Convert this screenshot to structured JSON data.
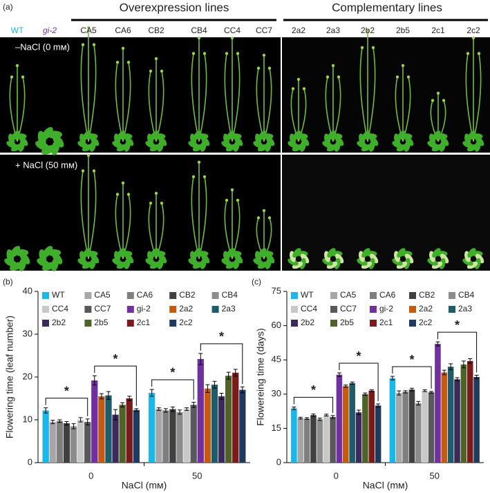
{
  "photo": {
    "panel_label": "(a)",
    "group_labels": [
      "Overexpression lines",
      "Complementary lines"
    ],
    "line_labels": [
      "WT",
      "gi-2",
      "CA5",
      "CA6",
      "CB2",
      "CB4",
      "CC4",
      "CC7",
      "2a2",
      "2a3",
      "2b2",
      "2b5",
      "2c1",
      "2c2"
    ],
    "conditions": [
      "–NaCl (0 mᴍ)",
      "+ NaCl (50 mᴍ)"
    ]
  },
  "chart_data": [
    {
      "type": "bar",
      "panel_label": "(b)",
      "y_label": "Flowering time (leaf number)",
      "x_label": "NaCl (mᴍ)",
      "categories": [
        "0",
        "50"
      ],
      "ylim": [
        0,
        40
      ],
      "yticks": [
        0,
        10,
        20,
        30,
        40
      ],
      "annotations": [
        "*",
        "*",
        "*",
        "*"
      ],
      "series": [
        {
          "name": "WT",
          "color": "#1ab7ea",
          "values": [
            12.2,
            16.3
          ],
          "errors": [
            0.6,
            0.8
          ]
        },
        {
          "name": "CA5",
          "color": "#a6a6a6",
          "values": [
            9.5,
            12.5
          ],
          "errors": [
            0.4,
            0.3
          ]
        },
        {
          "name": "CA6",
          "color": "#7f7f7f",
          "values": [
            9.7,
            12.2
          ],
          "errors": [
            0.3,
            0.4
          ]
        },
        {
          "name": "CB2",
          "color": "#404040",
          "values": [
            9.2,
            12.5
          ],
          "errors": [
            0.4,
            0.5
          ]
        },
        {
          "name": "CB4",
          "color": "#8c8c8c",
          "values": [
            8.5,
            11.8
          ],
          "errors": [
            0.6,
            0.5
          ]
        },
        {
          "name": "CC4",
          "color": "#c8c8c8",
          "values": [
            10.0,
            12.5
          ],
          "errors": [
            0.5,
            0.3
          ]
        },
        {
          "name": "CC7",
          "color": "#595959",
          "values": [
            9.5,
            13.5
          ],
          "errors": [
            0.7,
            0.6
          ]
        },
        {
          "name": "gi-2",
          "color": "#7030a0",
          "values": [
            19.2,
            24.2
          ],
          "errors": [
            1.1,
            1.3
          ]
        },
        {
          "name": "2a2",
          "color": "#c55a11",
          "values": [
            15.5,
            17.3
          ],
          "errors": [
            0.6,
            0.9
          ]
        },
        {
          "name": "2a3",
          "color": "#1f5c6b",
          "values": [
            15.7,
            18.2
          ],
          "errors": [
            0.9,
            0.8
          ]
        },
        {
          "name": "2b2",
          "color": "#3c2a5c",
          "values": [
            11.2,
            15.5
          ],
          "errors": [
            1.2,
            0.7
          ]
        },
        {
          "name": "2b5",
          "color": "#4f6228",
          "values": [
            13.5,
            20.3
          ],
          "errors": [
            0.5,
            0.8
          ]
        },
        {
          "name": "2c1",
          "color": "#7b1a1a",
          "values": [
            15.0,
            21.0
          ],
          "errors": [
            0.5,
            0.8
          ]
        },
        {
          "name": "2c2",
          "color": "#1f3a5f",
          "values": [
            12.3,
            17.0
          ],
          "errors": [
            0.3,
            0.7
          ]
        }
      ]
    },
    {
      "type": "bar",
      "panel_label": "(c)",
      "y_label": "Flowereing time (days)",
      "x_label": "NaCl (mᴍ)",
      "categories": [
        "0",
        "50"
      ],
      "ylim": [
        0,
        75
      ],
      "yticks": [
        0,
        15,
        30,
        45,
        60,
        75
      ],
      "annotations": [
        "*",
        "*",
        "*",
        "*"
      ],
      "series": [
        {
          "name": "WT",
          "color": "#1ab7ea",
          "values": [
            23.8,
            37.0
          ],
          "errors": [
            0.6,
            0.8
          ]
        },
        {
          "name": "CA5",
          "color": "#a6a6a6",
          "values": [
            19.5,
            30.5
          ],
          "errors": [
            0.4,
            0.9
          ]
        },
        {
          "name": "CA6",
          "color": "#7f7f7f",
          "values": [
            19.3,
            31.0
          ],
          "errors": [
            0.4,
            0.5
          ]
        },
        {
          "name": "CB2",
          "color": "#404040",
          "values": [
            20.8,
            32.0
          ],
          "errors": [
            0.5,
            0.6
          ]
        },
        {
          "name": "CB4",
          "color": "#8c8c8c",
          "values": [
            19.0,
            26.0
          ],
          "errors": [
            0.5,
            0.8
          ]
        },
        {
          "name": "CC4",
          "color": "#c8c8c8",
          "values": [
            20.8,
            31.5
          ],
          "errors": [
            0.4,
            0.4
          ]
        },
        {
          "name": "CC7",
          "color": "#595959",
          "values": [
            20.0,
            30.8
          ],
          "errors": [
            0.6,
            0.4
          ]
        },
        {
          "name": "gi-2",
          "color": "#7030a0",
          "values": [
            38.5,
            52.0
          ],
          "errors": [
            0.8,
            0.9
          ]
        },
        {
          "name": "2a2",
          "color": "#c55a11",
          "values": [
            33.5,
            39.5
          ],
          "errors": [
            0.5,
            1.0
          ]
        },
        {
          "name": "2a3",
          "color": "#1f5c6b",
          "values": [
            34.8,
            42.0
          ],
          "errors": [
            0.5,
            1.3
          ]
        },
        {
          "name": "2b2",
          "color": "#3c2a5c",
          "values": [
            22.0,
            36.5
          ],
          "errors": [
            1.0,
            0.7
          ]
        },
        {
          "name": "2b5",
          "color": "#4f6228",
          "values": [
            30.0,
            43.0
          ],
          "errors": [
            0.5,
            1.5
          ]
        },
        {
          "name": "2c1",
          "color": "#7b1a1a",
          "values": [
            31.5,
            44.5
          ],
          "errors": [
            0.4,
            1.0
          ]
        },
        {
          "name": "2c2",
          "color": "#1f3a5f",
          "values": [
            25.0,
            37.5
          ],
          "errors": [
            0.7,
            0.8
          ]
        }
      ]
    }
  ]
}
